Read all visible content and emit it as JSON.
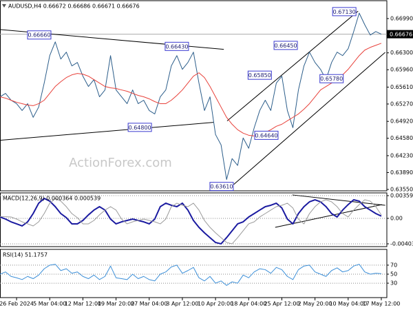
{
  "chart_data": [
    {
      "type": "line",
      "title": "AUDUSD,H4  0.66672 0.66686 0.66671 0.66676",
      "watermark": "ActionForex.com",
      "xlim": [
        0,
        70
      ],
      "ylim": [
        0.63522,
        0.6735
      ],
      "yticks": [
        {
          "value": 0.6699,
          "label": "0.66990"
        },
        {
          "value": 0.663,
          "label": "0.66300"
        },
        {
          "value": 0.6596,
          "label": "0.65960"
        },
        {
          "value": 0.6561,
          "label": "0.65610"
        },
        {
          "value": 0.6527,
          "label": "0.65270"
        },
        {
          "value": 0.6492,
          "label": "0.64920"
        },
        {
          "value": 0.6458,
          "label": "0.64580"
        },
        {
          "value": 0.6423,
          "label": "0.64230"
        },
        {
          "value": 0.6389,
          "label": "0.63890"
        },
        {
          "value": 0.6355,
          "label": "0.63550"
        }
      ],
      "grid": false,
      "last_price": {
        "value": 0.66676,
        "label": "0.66676"
      },
      "series": [
        {
          "color": "#2b5d8a",
          "values": [
            0.65415,
            0.65484,
            0.65346,
            0.65277,
            0.65139,
            0.65277,
            0.65001,
            0.65208,
            0.65692,
            0.66244,
            0.66521,
            0.66175,
            0.66314,
            0.66037,
            0.66106,
            0.6583,
            0.65623,
            0.65761,
            0.65415,
            0.65553,
            0.66244,
            0.65553,
            0.65415,
            0.65277,
            0.65553,
            0.65277,
            0.65346,
            0.65139,
            0.6507,
            0.65415,
            0.65553,
            0.66037,
            0.66244,
            0.65968,
            0.66106,
            0.66314,
            0.65692,
            0.65139,
            0.65415,
            0.64655,
            0.64448,
            0.6375,
            0.64171,
            0.64033,
            0.64586,
            0.64379,
            0.64793,
            0.65139,
            0.65346,
            0.65139,
            0.65692,
            0.6583,
            0.65139,
            0.64793,
            0.65553,
            0.66037,
            0.66314,
            0.66106,
            0.65968,
            0.65761,
            0.66106,
            0.66314,
            0.66244,
            0.66383,
            0.66728,
            0.671,
            0.66866,
            0.66659,
            0.66728,
            0.66676
          ]
        },
        {
          "color": "#e8413a",
          "values": [
            0.65415,
            0.65388,
            0.65346,
            0.65305,
            0.65277,
            0.65249,
            0.65236,
            0.65277,
            0.65346,
            0.65484,
            0.65623,
            0.65719,
            0.65802,
            0.65857,
            0.65885,
            0.65871,
            0.6583,
            0.65761,
            0.65692,
            0.65623,
            0.65595,
            0.65581,
            0.65553,
            0.65526,
            0.65484,
            0.65443,
            0.65415,
            0.65374,
            0.65318,
            0.65277,
            0.65277,
            0.65346,
            0.65443,
            0.65553,
            0.65692,
            0.6583,
            0.65899,
            0.65802,
            0.65623,
            0.65415,
            0.65208,
            0.65001,
            0.64862,
            0.64752,
            0.64683,
            0.64641,
            0.64627,
            0.64641,
            0.64697,
            0.64752,
            0.64821,
            0.64862,
            0.64932,
            0.65001,
            0.6507,
            0.65166,
            0.65277,
            0.65415,
            0.65553,
            0.65623,
            0.65692,
            0.65761,
            0.65857,
            0.65968,
            0.66106,
            0.66244,
            0.66355,
            0.6641,
            0.66452,
            0.66493
          ]
        }
      ],
      "annotations": [
        {
          "x": 7.1,
          "value": 0.6666,
          "label": "0.66660"
        },
        {
          "x": 32,
          "value": 0.6643,
          "label": "0.66430"
        },
        {
          "x": 25.3,
          "value": 0.648,
          "label": "0.64800"
        },
        {
          "x": 40.1,
          "value": 0.6361,
          "label": "0.63610"
        },
        {
          "x": 48.2,
          "value": 0.6464,
          "label": "0.64640"
        },
        {
          "x": 47,
          "value": 0.6585,
          "label": "0.65850"
        },
        {
          "x": 51.7,
          "value": 0.6645,
          "label": "0.66450"
        },
        {
          "x": 60,
          "value": 0.6578,
          "label": "0.65780"
        },
        {
          "x": 62.3,
          "value": 0.6713,
          "label": "0.67130"
        }
      ],
      "trendlines": [
        {
          "x": [
            0,
            40.5
          ],
          "values": [
            0.6677,
            0.6637
          ]
        },
        {
          "x": [
            0,
            38.6
          ],
          "values": [
            0.6454,
            0.649
          ]
        },
        {
          "x": [
            41.1,
            64.8
          ],
          "values": [
            0.6493,
            0.6714
          ]
        },
        {
          "x": [
            42.3,
            69.7
          ],
          "values": [
            0.6365,
            0.6631
          ]
        }
      ]
    },
    {
      "type": "line",
      "title": "MACD(12,26,9) 0.000364 0.000539",
      "xlim": [
        0,
        70
      ],
      "ylim": [
        -0.00447,
        0.00403
      ],
      "yticks": [
        0.003595,
        {
          "value": 0,
          "label": "0.00"
        },
        -0.00403
      ],
      "grid": true,
      "series": [
        {
          "color": "#1a1aa0",
          "values": [
            0.00022,
            -0.00011,
            -0.00055,
            -0.00087,
            -0.0012,
            -0.00055,
            0.00076,
            0.0024,
            0.00316,
            0.00273,
            0.00185,
            0.00076,
            0.00011,
            -0.00087,
            -0.00087,
            -0.00033,
            0.00055,
            0.00131,
            0.00185,
            0.00131,
            -0.00011,
            -0.00087,
            -0.00055,
            -0.00033,
            -0.00011,
            -0.00033,
            -0.00055,
            -0.00087,
            -0.00011,
            0.00185,
            0.0024,
            0.00207,
            0.00185,
            0.0024,
            0.00131,
            -0.00033,
            -0.00142,
            -0.00229,
            -0.00305,
            -0.00381,
            -0.00403,
            -0.00305,
            -0.00196,
            -0.00087,
            -0.00055,
            0.00022,
            0.00076,
            0.00131,
            0.00185,
            0.00207,
            0.0024,
            0.00164,
            -0.00011,
            -0.00087,
            0.00076,
            0.00185,
            0.00262,
            0.00294,
            0.00262,
            0.00185,
            0.00076,
            0.00022,
            0.00131,
            0.00218,
            0.00294,
            0.00273,
            0.00185,
            0.00131,
            0.00076,
            0.00036
          ]
        },
        {
          "color": "#9a9a9a",
          "values": [
            0.0003,
            0.00025,
            0.00022,
            -0.00011,
            -0.00055,
            -0.00087,
            -0.0012,
            -0.00055,
            0.00076,
            0.0024,
            0.00316,
            0.00273,
            0.00185,
            0.00076,
            0.00011,
            -0.00087,
            -0.00087,
            -0.00033,
            0.00055,
            0.00131,
            0.00185,
            0.00131,
            -0.00011,
            -0.00087,
            -0.00055,
            -0.00033,
            -0.00011,
            -0.00033,
            -0.00055,
            -0.00087,
            -0.00011,
            0.00185,
            0.0024,
            0.00207,
            0.00185,
            0.0024,
            0.00131,
            -0.00033,
            -0.00142,
            -0.00229,
            -0.00305,
            -0.00381,
            -0.00403,
            -0.00305,
            -0.00196,
            -0.00087,
            -0.00055,
            0.00022,
            0.00076,
            0.00131,
            0.00185,
            0.00207,
            0.0024,
            0.00164,
            -0.00011,
            -0.00087,
            0.00076,
            0.00185,
            0.00262,
            0.00294,
            0.00262,
            0.00185,
            0.00076,
            0.00022,
            0.00131,
            0.00218,
            0.00294,
            0.00273,
            0.00185,
            0.00054
          ]
        }
      ],
      "trendlines": [
        {
          "x": [
            52.9,
            69.7
          ],
          "values": [
            0.00371,
            0.00207
          ]
        },
        {
          "x": [
            49.8,
            69.1
          ],
          "values": [
            -0.00142,
            0.00218
          ]
        }
      ]
    },
    {
      "type": "line",
      "title": "RSI(14) 51.1757",
      "xlim": [
        0,
        70
      ],
      "ylim": [
        -2,
        105
      ],
      "yticks": [
        70,
        50,
        30
      ],
      "grid": true,
      "xticks": [
        {
          "value": 3,
          "label": "26 Feb 2024"
        },
        {
          "value": 9,
          "label": "5 Mar 04:00"
        },
        {
          "value": 15,
          "label": "12 Mar 12:00"
        },
        {
          "value": 21,
          "label": "19 Mar 20:00"
        },
        {
          "value": 27,
          "label": "27 Mar 04:00"
        },
        {
          "value": 33,
          "label": "3 Apr 12:00"
        },
        {
          "value": 39,
          "label": "10 Apr 20:00"
        },
        {
          "value": 45,
          "label": "18 Apr 04:00"
        },
        {
          "value": 51,
          "label": "25 Apr 12:00"
        },
        {
          "value": 57,
          "label": "2 May 20:00"
        },
        {
          "value": 63,
          "label": "10 May 04:00"
        },
        {
          "value": 69,
          "label": "17 May 12:00"
        }
      ],
      "series": [
        {
          "color": "#3c8fd8",
          "values": [
            50,
            55,
            45,
            42,
            38,
            45,
            40,
            48,
            62,
            70,
            72,
            58,
            62,
            52,
            55,
            45,
            40,
            48,
            38,
            45,
            68,
            42,
            40,
            38,
            50,
            40,
            45,
            38,
            35,
            50,
            55,
            66,
            70,
            52,
            58,
            65,
            42,
            35,
            45,
            30,
            35,
            25,
            33,
            30,
            48,
            42,
            55,
            62,
            60,
            52,
            65,
            60,
            45,
            38,
            60,
            68,
            70,
            55,
            50,
            45,
            58,
            64,
            55,
            58,
            68,
            72,
            55,
            50,
            52,
            51.1757
          ]
        }
      ]
    }
  ]
}
